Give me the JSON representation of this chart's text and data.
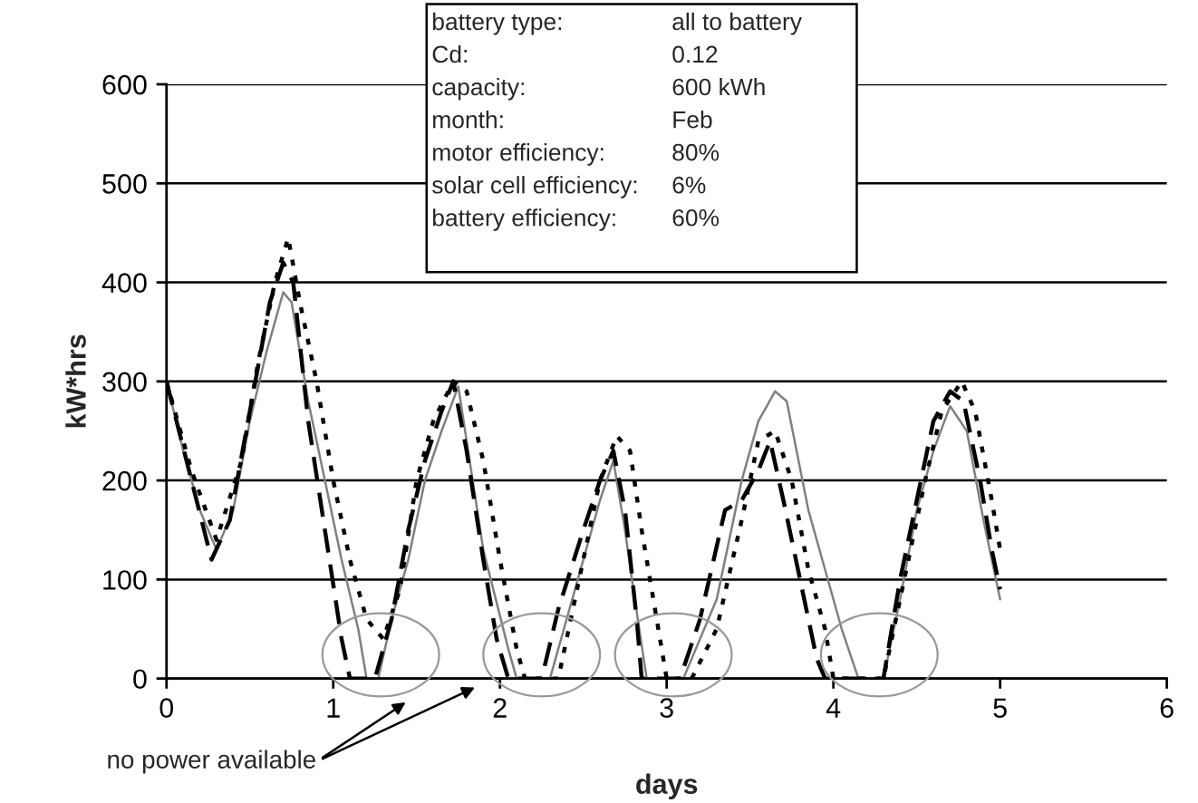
{
  "chart_data": {
    "type": "line",
    "xlabel": "days",
    "ylabel": "kW*hrs",
    "xlim": [
      0,
      6
    ],
    "xticks": [
      0,
      1,
      2,
      3,
      4,
      5,
      6
    ],
    "ylim": [
      0,
      600
    ],
    "yticks": [
      0,
      100,
      200,
      300,
      400,
      500,
      600
    ],
    "grid": "y",
    "legend": false,
    "marker": "none",
    "series": [
      {
        "color": "#808080",
        "line_style": "solid",
        "x": [
          0,
          0.1,
          0.2,
          0.3,
          0.4,
          0.5,
          0.6,
          0.7,
          0.75,
          0.85,
          0.95,
          1.05,
          1.15,
          1.2,
          1.27,
          1.35,
          1.45,
          1.55,
          1.65,
          1.75,
          1.8,
          1.9,
          2.05,
          2.1,
          2.3,
          2.4,
          2.5,
          2.6,
          2.68,
          2.75,
          2.8,
          2.88,
          3.1,
          3.3,
          3.45,
          3.55,
          3.65,
          3.72,
          3.85,
          3.95,
          4.05,
          4.15,
          4.3,
          4.4,
          4.5,
          4.6,
          4.7,
          4.8,
          4.9,
          5.0
        ],
        "values": [
          300,
          230,
          170,
          130,
          170,
          260,
          330,
          390,
          380,
          280,
          200,
          120,
          50,
          0,
          0,
          60,
          120,
          200,
          250,
          295,
          240,
          130,
          30,
          0,
          0,
          60,
          120,
          180,
          220,
          150,
          90,
          0,
          0,
          80,
          200,
          260,
          290,
          280,
          170,
          110,
          50,
          0,
          0,
          80,
          170,
          230,
          275,
          250,
          160,
          80
        ]
      },
      {
        "color": "#000000",
        "line_style": "dashed",
        "x": [
          0,
          0.15,
          0.27,
          0.38,
          0.5,
          0.62,
          0.7,
          0.76,
          0.85,
          0.95,
          1.05,
          1.1,
          1.25,
          1.35,
          1.45,
          1.55,
          1.65,
          1.72,
          1.8,
          1.9,
          1.98,
          2.05,
          2.25,
          2.35,
          2.5,
          2.6,
          2.68,
          2.75,
          2.82,
          2.85,
          3.08,
          3.2,
          3.35,
          3.45,
          3.55,
          3.62,
          3.7,
          3.8,
          3.9,
          3.95,
          4.3,
          4.4,
          4.5,
          4.6,
          4.7,
          4.78,
          4.88,
          4.95,
          5.0
        ],
        "values": [
          300,
          200,
          120,
          160,
          270,
          380,
          420,
          400,
          260,
          150,
          40,
          0,
          0,
          60,
          150,
          220,
          270,
          300,
          230,
          120,
          40,
          0,
          0,
          70,
          150,
          200,
          230,
          170,
          60,
          0,
          0,
          60,
          170,
          180,
          210,
          240,
          180,
          100,
          20,
          0,
          0,
          100,
          180,
          260,
          290,
          280,
          200,
          130,
          90
        ]
      },
      {
        "color": "#000000",
        "line_style": "dotted",
        "x": [
          0,
          0.15,
          0.3,
          0.45,
          0.55,
          0.65,
          0.73,
          0.8,
          0.9,
          1.0,
          1.1,
          1.2,
          1.3,
          1.4,
          1.5,
          1.6,
          1.72,
          1.8,
          1.9,
          2.0,
          2.1,
          2.15,
          2.35,
          2.45,
          2.6,
          2.7,
          2.78,
          2.85,
          2.95,
          3.0,
          3.15,
          3.3,
          3.45,
          3.55,
          3.65,
          3.75,
          3.85,
          3.95,
          4.0,
          4.3,
          4.4,
          4.55,
          4.65,
          4.77,
          4.85,
          4.95,
          5.0
        ],
        "values": [
          300,
          210,
          140,
          220,
          320,
          400,
          445,
          380,
          300,
          200,
          120,
          60,
          40,
          90,
          200,
          260,
          300,
          290,
          220,
          120,
          30,
          0,
          0,
          80,
          200,
          245,
          230,
          150,
          50,
          0,
          0,
          50,
          160,
          240,
          250,
          200,
          110,
          50,
          0,
          0,
          80,
          200,
          270,
          300,
          270,
          180,
          130
        ]
      }
    ],
    "annotations": [
      "battery type: all to battery",
      "Cd: 0.12",
      "capacity: 600 kWh",
      "month: Feb",
      "motor efficiency: 80%",
      "solar cell efficiency: 6%",
      "battery efficiency: 60%",
      "no power available"
    ]
  }
}
